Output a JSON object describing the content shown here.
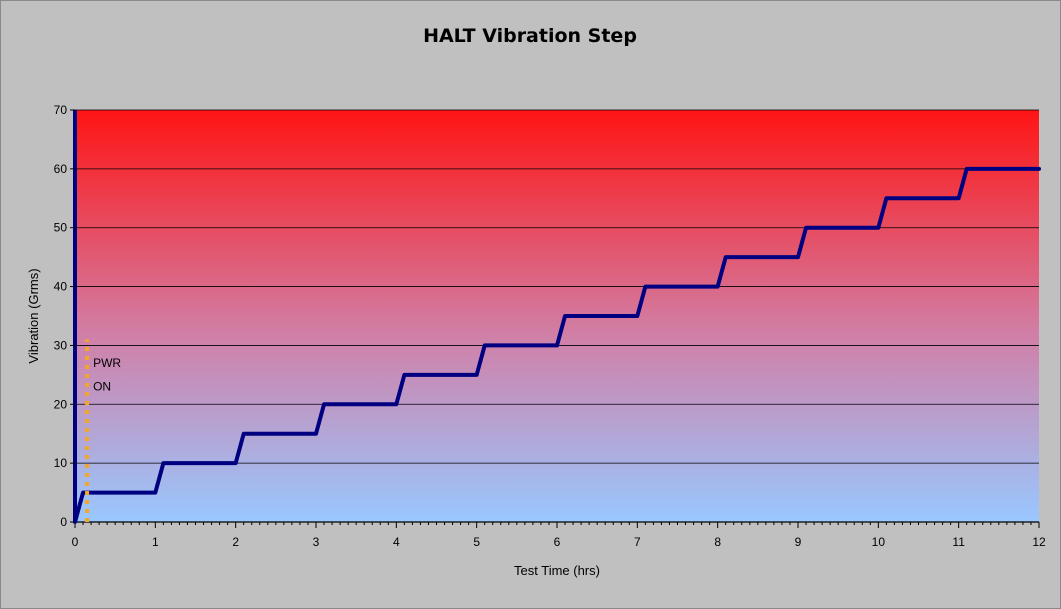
{
  "chart_data": {
    "type": "line",
    "title": "HALT Vibration Step",
    "xlabel": "Test Time (hrs)",
    "ylabel": "Vibration (Grms)",
    "xlim": [
      0,
      12
    ],
    "ylim": [
      0,
      70
    ],
    "x_ticks": [
      "0",
      "1",
      "2",
      "3",
      "4",
      "5",
      "6",
      "7",
      "8",
      "9",
      "10",
      "11",
      "12"
    ],
    "y_ticks": [
      "0",
      "10",
      "20",
      "30",
      "40",
      "50",
      "60",
      "70"
    ],
    "grid": "horizontal",
    "background_gradient": {
      "top": "#ff1414",
      "middle": "#d080a8",
      "bottom": "#99c8ff"
    },
    "series": [
      {
        "color": "#000080",
        "style": "solid",
        "x": [
          0,
          0.1,
          1.0,
          1.1,
          2.0,
          2.1,
          3.0,
          3.1,
          4.0,
          4.1,
          5.0,
          5.1,
          6.0,
          6.1,
          7.0,
          7.1,
          8.0,
          8.1,
          9.0,
          9.1,
          10.0,
          10.1,
          11.0,
          11.1,
          12.0
        ],
        "y": [
          0,
          5,
          5,
          10,
          10,
          15,
          15,
          20,
          20,
          25,
          25,
          30,
          30,
          35,
          35,
          40,
          40,
          45,
          45,
          50,
          50,
          55,
          55,
          60,
          60
        ]
      },
      {
        "color": "#f5a623",
        "style": "dotted",
        "x": [
          0.15,
          0.15
        ],
        "y": [
          0,
          31
        ]
      }
    ],
    "annotations": [
      {
        "text": "PWR",
        "x": 0.25,
        "y": 27
      },
      {
        "text": "ON",
        "x": 0.25,
        "y": 23
      }
    ]
  }
}
